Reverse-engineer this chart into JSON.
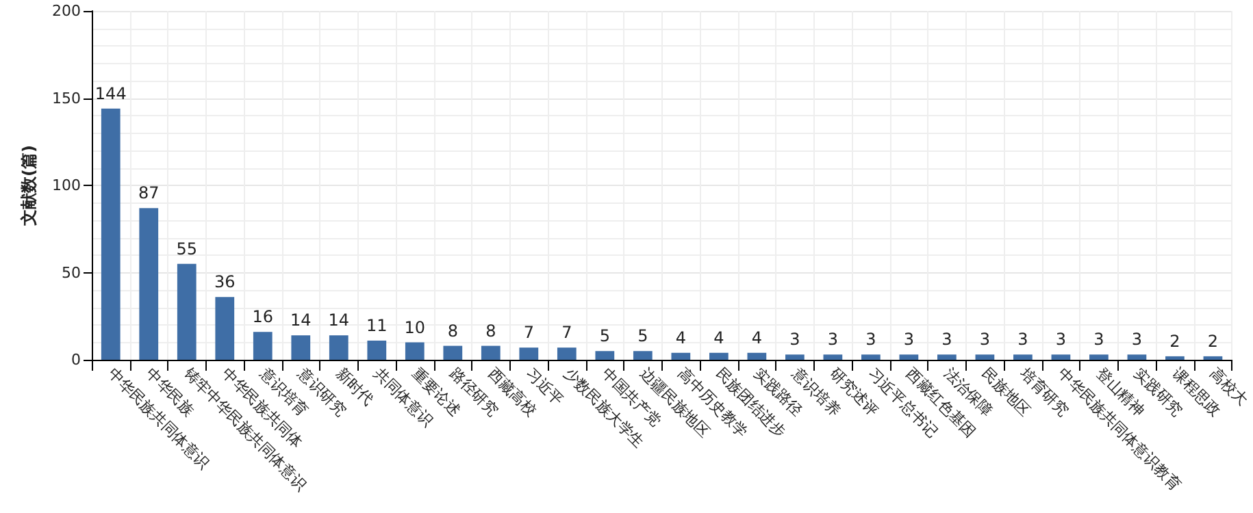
{
  "chart_data": {
    "type": "bar",
    "ylabel": "文献数(篇)",
    "categories": [
      "中华民族共同体意识",
      "中华民族",
      "铸牢中华民族共同体意识",
      "中华民族共同体",
      "意识培育",
      "意识研究",
      "新时代",
      "共同体意识",
      "重要论述",
      "路径研究",
      "西藏高校",
      "习近平",
      "少数民族大学生",
      "中国共产党",
      "边疆民族地区",
      "高中历史教学",
      "民族团结进步",
      "实践路径",
      "意识培养",
      "研究述评",
      "习近平总书记",
      "西藏红色基因",
      "法治保障",
      "民族地区",
      "培育研究",
      "中华民族共同体意识教育",
      "登山精神",
      "实践研究",
      "课程思政",
      "高校大"
    ],
    "values": [
      144,
      87,
      55,
      36,
      16,
      14,
      14,
      11,
      10,
      8,
      8,
      7,
      7,
      5,
      5,
      4,
      4,
      4,
      3,
      3,
      3,
      3,
      3,
      3,
      3,
      3,
      3,
      3,
      2,
      2
    ],
    "color": "#3f6ea6",
    "ylim": [
      0,
      200
    ],
    "yticks": [
      0,
      50,
      100,
      150,
      200
    ],
    "grid": true,
    "data_labels": true
  }
}
